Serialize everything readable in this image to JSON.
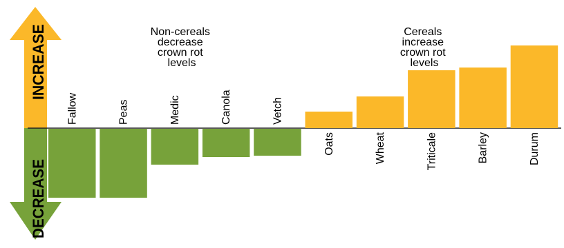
{
  "chart_data": {
    "type": "bar",
    "title": "",
    "xlabel": "",
    "ylabel": "",
    "categories": [
      "Fallow",
      "Peas",
      "Medic",
      "Canola",
      "Vetch",
      "Oats",
      "Wheat",
      "Triticale",
      "Barley",
      "Durum"
    ],
    "values": [
      -10,
      -10,
      -5.2,
      -4.1,
      -3.9,
      2.4,
      4.6,
      8.4,
      8.8,
      12
    ],
    "ylim": [
      -16,
      12
    ],
    "grid": false,
    "legend": "none",
    "colors": {
      "increase": "#fbb829",
      "decrease": "#77a23a"
    },
    "annotations": {
      "non_cereals": [
        "Non-cereals",
        "decrease",
        "crown rot",
        "levels"
      ],
      "cereals": [
        "Cereals",
        "increase",
        "crown rot",
        "levels"
      ]
    },
    "axis_arrows": {
      "up_label": "INCREASE",
      "down_label": "DECREASE"
    }
  }
}
